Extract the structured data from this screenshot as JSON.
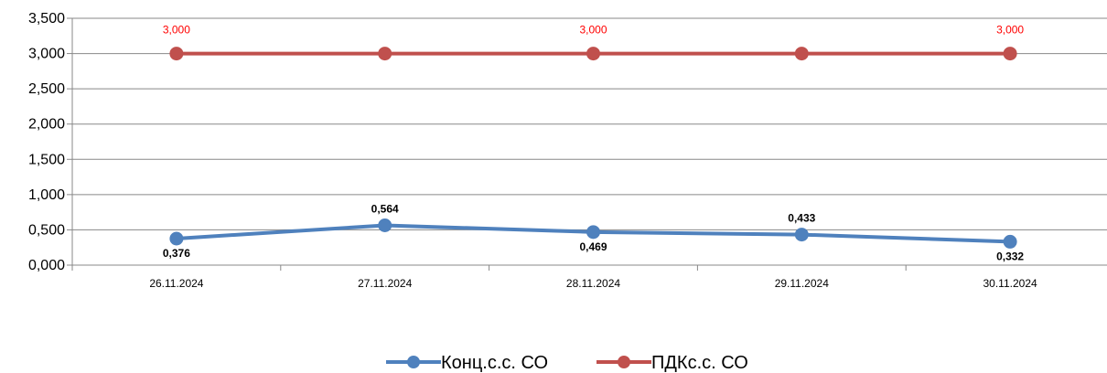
{
  "chart_data": {
    "type": "line",
    "categories": [
      "26.11.2024",
      "27.11.2024",
      "28.11.2024",
      "29.11.2024",
      "30.11.2024"
    ],
    "ylim": [
      0,
      3.5
    ],
    "yticks": [
      "0,000",
      "0,500",
      "1,000",
      "1,500",
      "2,000",
      "2,500",
      "3,000",
      "3,500"
    ],
    "grid": true,
    "legend_position": "bottom",
    "series": [
      {
        "name": "Конц.с.с. СО",
        "color": "#4f81bd",
        "values": [
          0.376,
          0.564,
          0.469,
          0.433,
          0.332
        ],
        "labels": [
          "0,376",
          "0,564",
          "0,469",
          "0,433",
          "0,332"
        ],
        "label_positions": [
          "below",
          "above",
          "below",
          "above",
          "below"
        ]
      },
      {
        "name": "ПДКс.с. СО",
        "color": "#c0504d",
        "values": [
          3.0,
          3.0,
          3.0,
          3.0,
          3.0
        ],
        "labels": [
          "3,000",
          "",
          "3,000",
          "",
          "3,000"
        ],
        "label_positions": [
          "above",
          "above",
          "above",
          "above",
          "above"
        ]
      }
    ]
  }
}
